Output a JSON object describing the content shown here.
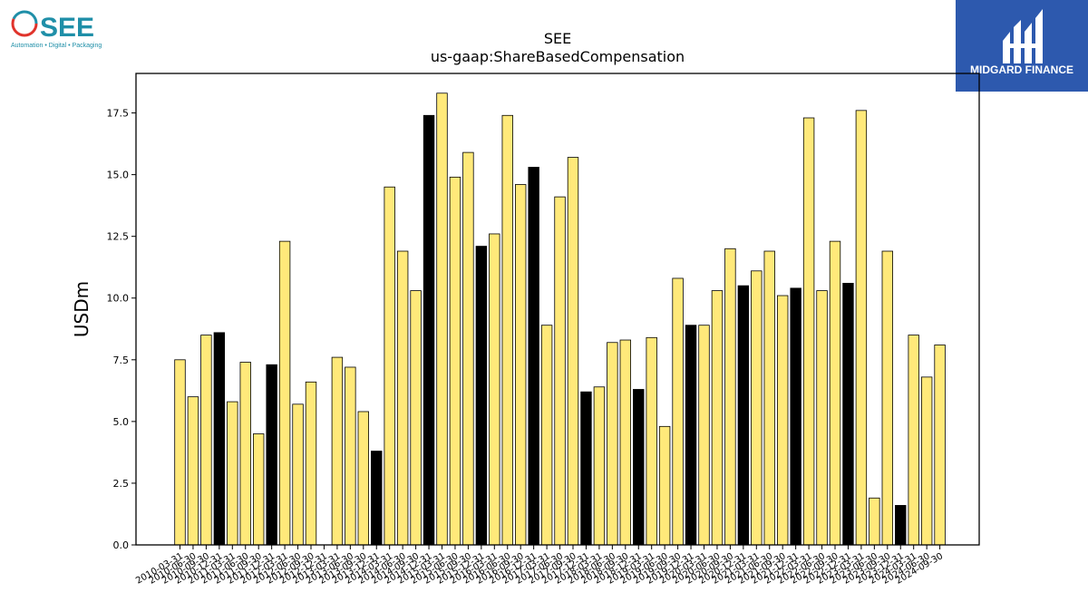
{
  "logo_left": {
    "name": "SEE",
    "tagline": "Automation • Digital • Packaging",
    "colors": {
      "ring_red": "#e0332b",
      "ring_blue": "#1f8fa8",
      "text": "#1f8fa8"
    }
  },
  "logo_right": {
    "name": "MIDGARD FINANCE",
    "bg_color": "#2d59ae"
  },
  "chart_data": {
    "type": "bar",
    "title": "SEE",
    "subtitle": "us-gaap:ShareBasedCompensation",
    "ylabel": "USDm",
    "xlabel": "",
    "ylim": [
      0,
      19.1
    ],
    "yticks": [
      "0.0",
      "2.5",
      "5.0",
      "7.5",
      "10.0",
      "12.5",
      "15.0",
      "17.5"
    ],
    "grid": false,
    "colors": {
      "quarter": "#ffe97a",
      "year_end": "#000000",
      "edge": "#000000"
    },
    "categories": [
      "2010-03-31",
      "2010-06-30",
      "2010-09-30",
      "2010-12-31",
      "2011-03-31",
      "2011-06-30",
      "2011-09-30",
      "2011-12-31",
      "2012-03-31",
      "2012-06-30",
      "2012-09-30",
      "2012-12-31",
      "2013-03-31",
      "2013-06-30",
      "2013-09-30",
      "2013-12-31",
      "2014-03-31",
      "2014-06-30",
      "2014-09-30",
      "2014-12-31",
      "2015-03-31",
      "2015-06-30",
      "2015-09-30",
      "2015-12-31",
      "2016-03-31",
      "2016-06-30",
      "2016-09-30",
      "2016-12-31",
      "2017-03-31",
      "2017-06-30",
      "2017-09-30",
      "2017-12-31",
      "2018-03-31",
      "2018-06-30",
      "2018-09-30",
      "2018-12-31",
      "2019-03-31",
      "2019-06-30",
      "2019-09-30",
      "2019-12-31",
      "2020-03-31",
      "2020-06-30",
      "2020-09-30",
      "2020-12-31",
      "2021-03-31",
      "2021-06-30",
      "2021-09-30",
      "2021-12-31",
      "2022-03-31",
      "2022-06-30",
      "2022-09-30",
      "2022-12-31",
      "2023-03-31",
      "2023-06-30",
      "2023-09-30",
      "2023-12-31",
      "2024-03-31",
      "2024-06-30",
      "2024-09-30"
    ],
    "values": [
      7.5,
      6.0,
      8.5,
      8.6,
      5.8,
      7.4,
      4.5,
      7.3,
      12.3,
      5.7,
      6.6,
      0,
      7.6,
      7.2,
      5.4,
      3.8,
      14.5,
      11.9,
      10.3,
      17.4,
      18.3,
      14.9,
      15.9,
      12.1,
      12.6,
      17.4,
      14.6,
      15.3,
      8.9,
      14.1,
      15.7,
      6.2,
      6.4,
      8.2,
      8.3,
      6.3,
      8.4,
      4.8,
      10.8,
      8.9,
      8.9,
      10.3,
      12.0,
      10.5,
      11.1,
      11.9,
      10.1,
      10.4,
      17.3,
      10.3,
      12.3,
      10.6,
      17.6,
      1.9,
      11.9,
      1.6,
      8.5,
      6.8,
      8.1
    ],
    "highlight": [
      false,
      false,
      false,
      true,
      false,
      false,
      false,
      true,
      false,
      false,
      false,
      true,
      false,
      false,
      false,
      true,
      false,
      false,
      false,
      true,
      false,
      false,
      false,
      true,
      false,
      false,
      false,
      true,
      false,
      false,
      false,
      true,
      false,
      false,
      false,
      true,
      false,
      false,
      false,
      true,
      false,
      false,
      false,
      true,
      false,
      false,
      false,
      true,
      false,
      false,
      false,
      true,
      false,
      false,
      false,
      true,
      false,
      false,
      false
    ]
  }
}
